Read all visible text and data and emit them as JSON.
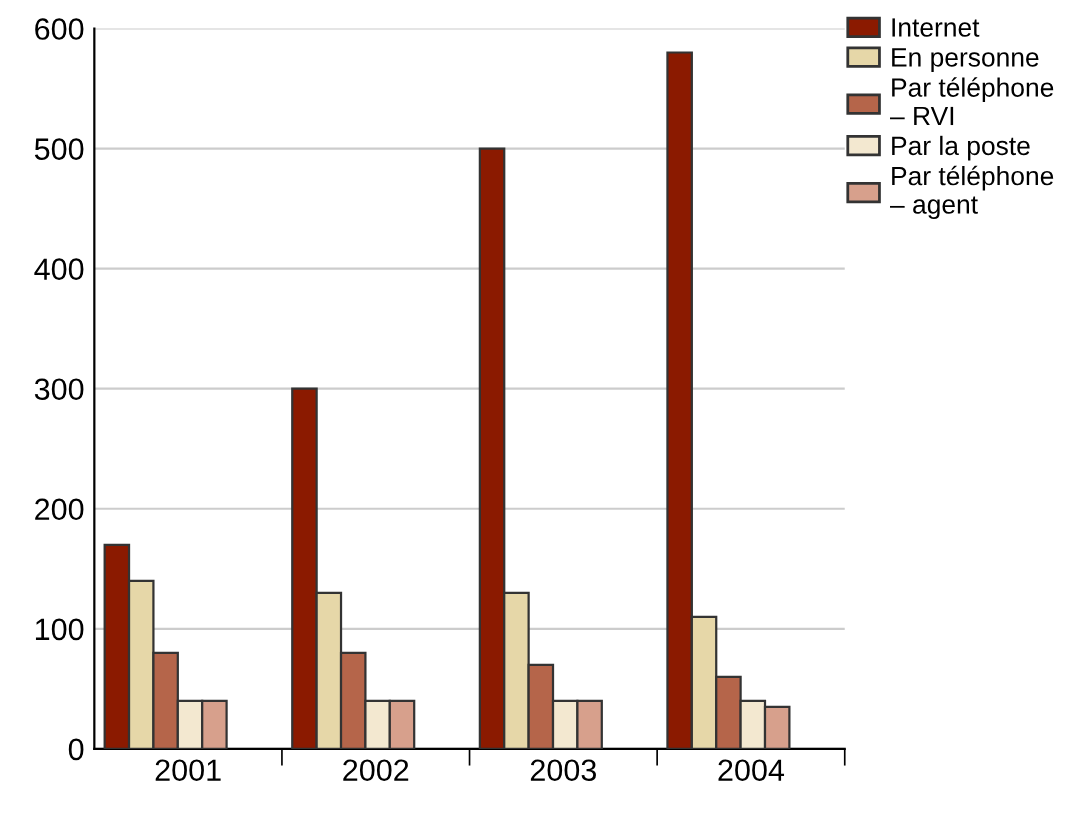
{
  "chart_data": {
    "type": "bar",
    "categories": [
      "2001",
      "2002",
      "2003",
      "2004"
    ],
    "series": [
      {
        "name": "Internet",
        "color": "#8b1a00",
        "values": [
          170,
          300,
          500,
          580
        ]
      },
      {
        "name": "En personne",
        "color": "#e6d7a8",
        "values": [
          140,
          130,
          130,
          110
        ]
      },
      {
        "name": "Par téléphone\n– RVI",
        "color": "#b5654a",
        "values": [
          80,
          80,
          70,
          60
        ]
      },
      {
        "name": "Par la poste",
        "color": "#f3e8d0",
        "values": [
          40,
          40,
          40,
          40
        ]
      },
      {
        "name": "Par téléphone\n– agent",
        "color": "#d7a08c",
        "values": [
          40,
          40,
          40,
          35
        ]
      }
    ],
    "ylim": [
      0,
      600
    ],
    "yticks": [
      0,
      100,
      200,
      300,
      400,
      500,
      600
    ],
    "grid": "y",
    "legend": "top right"
  }
}
